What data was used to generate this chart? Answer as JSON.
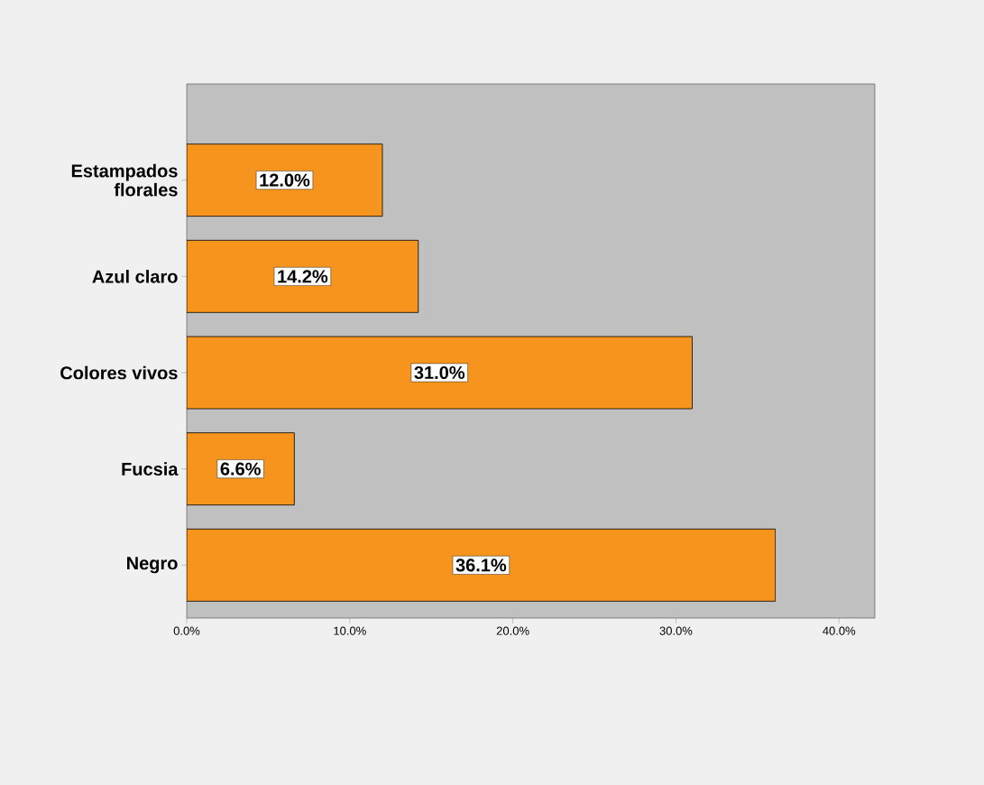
{
  "chart_data": {
    "type": "bar",
    "orientation": "horizontal",
    "categories": [
      "Estampados florales",
      "Azul claro",
      "Colores vivos",
      "Fucsia",
      "Negro"
    ],
    "values": [
      12.0,
      14.2,
      31.0,
      6.6,
      36.1
    ],
    "value_labels": [
      "12.0%",
      "14.2%",
      "31.0%",
      "6.6%",
      "36.1%"
    ],
    "color": "#f7941d",
    "xlim": [
      0,
      42.2
    ],
    "xticks": [
      {
        "value": 0,
        "label": "0.0%"
      },
      {
        "value": 10,
        "label": "10.0%"
      },
      {
        "value": 20,
        "label": "20.0%"
      },
      {
        "value": 30,
        "label": "30.0%"
      },
      {
        "value": 40,
        "label": "40.0%"
      }
    ],
    "grid": false
  }
}
